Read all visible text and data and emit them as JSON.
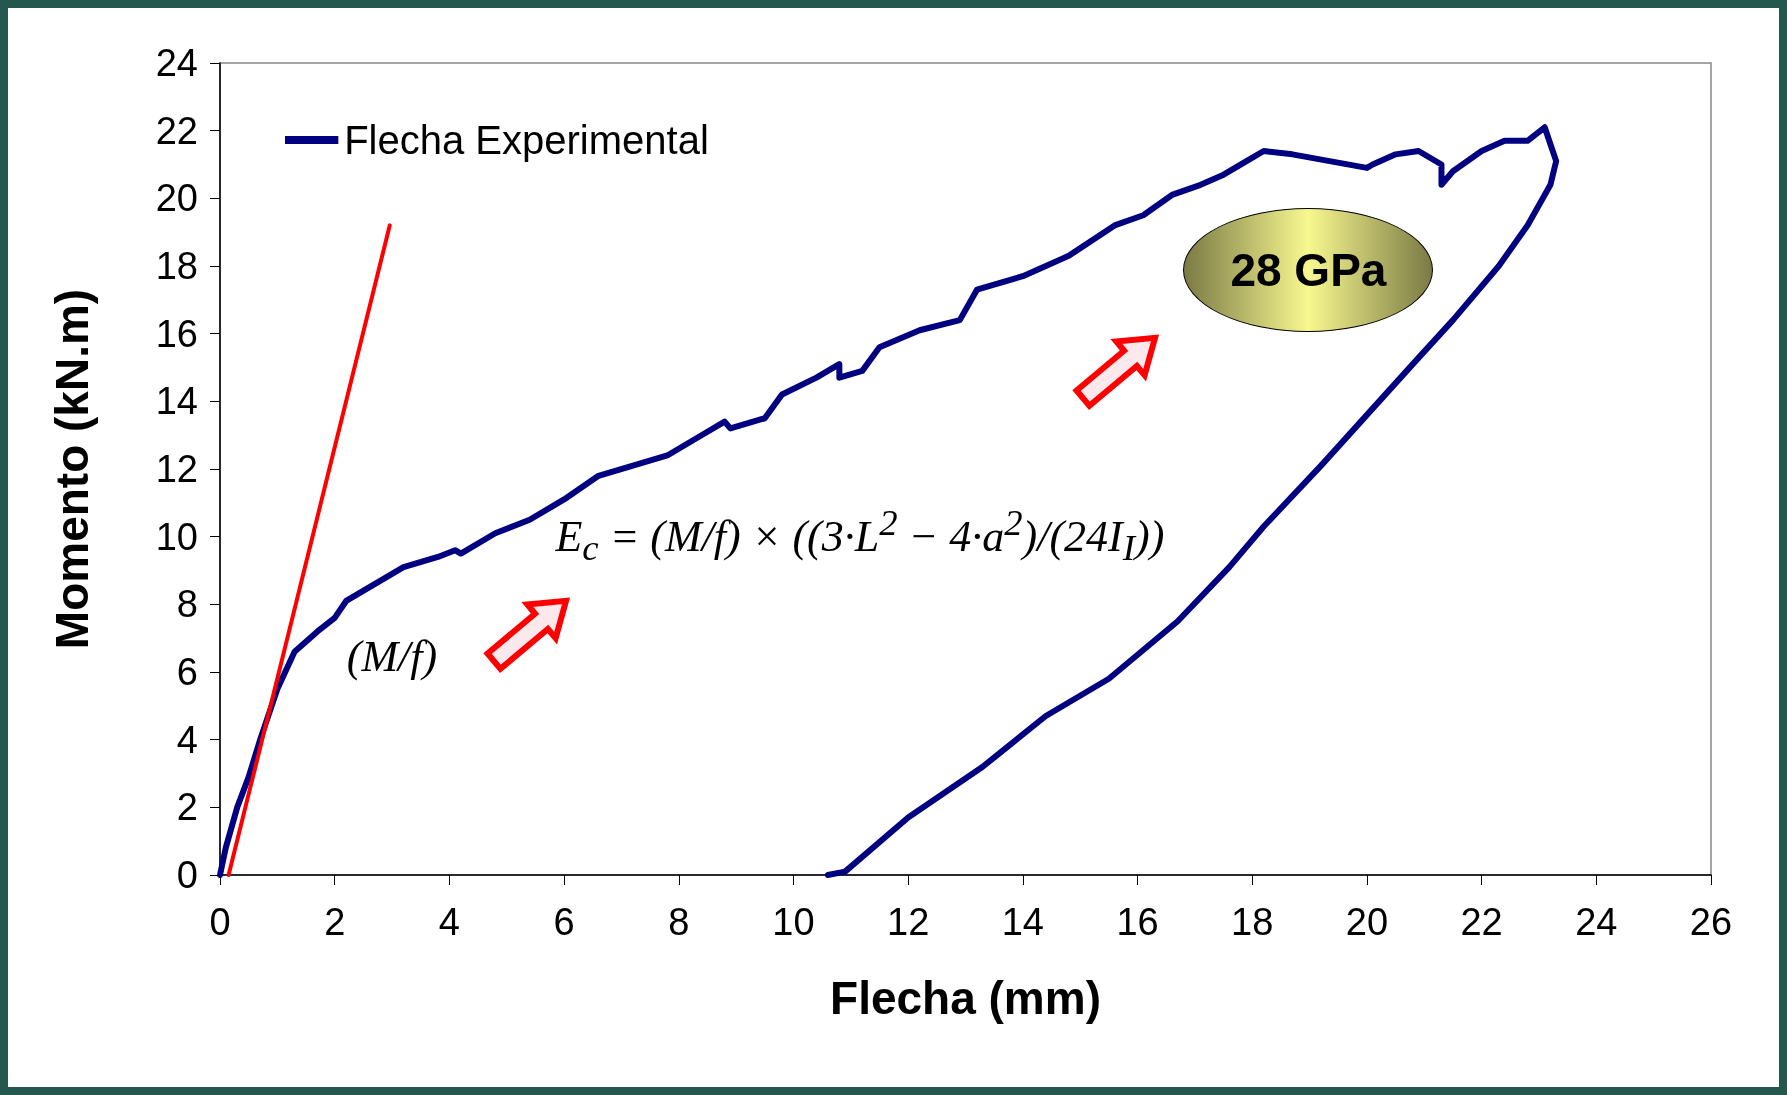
{
  "chart_data": {
    "type": "line",
    "xlabel": "Flecha (mm)",
    "ylabel": "Momento (kN.m)",
    "xlim": [
      0,
      26
    ],
    "xticks": [
      0,
      2,
      4,
      6,
      8,
      10,
      12,
      14,
      16,
      18,
      20,
      22,
      24,
      26
    ],
    "ylim": [
      0,
      24
    ],
    "yticks": [
      0,
      2,
      4,
      6,
      8,
      10,
      12,
      14,
      16,
      18,
      20,
      22,
      24
    ],
    "grid": false,
    "legend": "top left",
    "marker": "none",
    "line_style": "solid",
    "series": [
      {
        "name": "Flecha Experimental",
        "color": "#000080",
        "x": [
          0,
          0.1,
          0.3,
          0.5,
          0.7,
          1,
          1.3,
          1.7,
          2,
          2.2,
          2.8,
          3.2,
          3.8,
          4.1,
          4.2,
          4.8,
          5.4,
          6,
          6.6,
          7.2,
          7.8,
          8.5,
          8.8,
          8.9,
          9.5,
          9.8,
          10.4,
          10.8,
          10.8,
          11.2,
          11.5,
          12.2,
          12.9,
          13.2,
          14,
          14.8,
          15.6,
          16.1,
          16.6,
          17.1,
          17.5,
          17.9,
          18.2,
          18.7,
          20,
          20.1,
          20.5,
          20.9,
          21.3,
          21.3,
          21.5,
          22,
          22.4,
          22.8,
          23.1,
          23.2,
          23.3,
          23.2,
          22.8,
          22.3,
          21.5,
          20.8,
          20,
          19.2,
          18.2,
          17.6,
          16.7,
          15.5,
          14.4,
          13.3,
          12,
          10.9,
          10.6
        ],
        "values": [
          0,
          0.8,
          2,
          2.9,
          4,
          5.5,
          6.6,
          7.2,
          7.6,
          8.1,
          8.7,
          9.1,
          9.4,
          9.6,
          9.5,
          10.1,
          10.5,
          11.1,
          11.8,
          12.1,
          12.4,
          13.1,
          13.4,
          13.2,
          13.5,
          14.2,
          14.7,
          15.1,
          14.7,
          14.9,
          15.6,
          16.1,
          16.4,
          17.3,
          17.7,
          18.3,
          19.2,
          19.5,
          20.1,
          20.4,
          20.7,
          21.1,
          21.4,
          21.3,
          20.9,
          21,
          21.3,
          21.4,
          21,
          20.4,
          20.8,
          21.4,
          21.7,
          21.7,
          22.1,
          21.6,
          21.1,
          20.4,
          19.2,
          18,
          16.4,
          15.1,
          13.6,
          12.1,
          10.3,
          9.1,
          7.5,
          5.8,
          4.7,
          3.2,
          1.7,
          0.1,
          0
        ]
      },
      {
        "color": "#ff0000",
        "x": [
          0.15,
          2.96
        ],
        "values": [
          0,
          19.2
        ]
      }
    ],
    "annotations": [
      "(M/f)",
      "E$_{c}$ = (M/f) × ((3·L$^{2}$ − 4·a$^{2}$)/(24I$_{I}$))",
      "28 GPa"
    ]
  }
}
